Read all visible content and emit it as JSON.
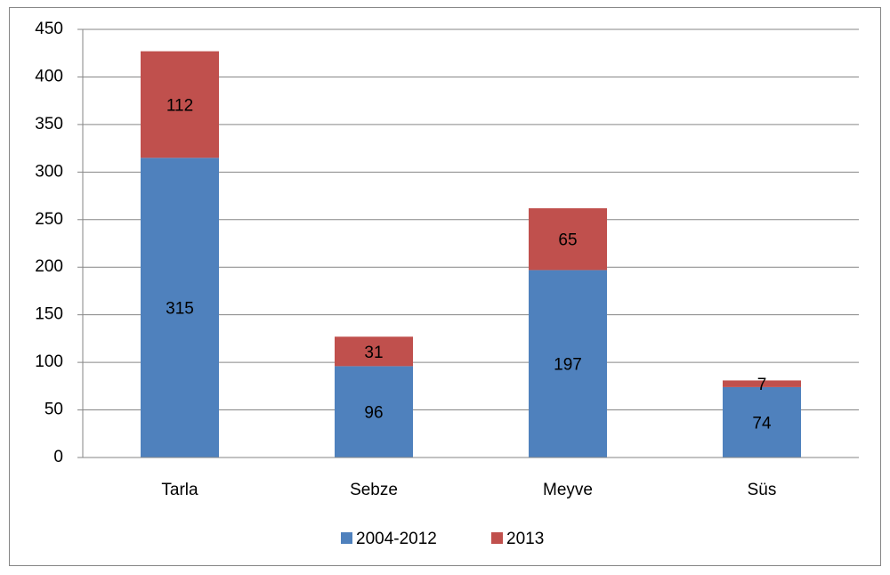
{
  "chart_data": {
    "type": "bar",
    "stacked": true,
    "categories": [
      "Tarla",
      "Sebze",
      "Meyve",
      "Süs"
    ],
    "series": [
      {
        "name": "2004-2012",
        "color": "#4f81bd",
        "values": [
          315,
          96,
          197,
          74
        ]
      },
      {
        "name": "2013",
        "color": "#c0504d",
        "values": [
          112,
          31,
          65,
          7
        ]
      }
    ],
    "ylim": [
      0,
      450
    ],
    "yticks": [
      0,
      50,
      100,
      150,
      200,
      250,
      300,
      350,
      400,
      450
    ],
    "grid": true,
    "legend": "bottom"
  }
}
